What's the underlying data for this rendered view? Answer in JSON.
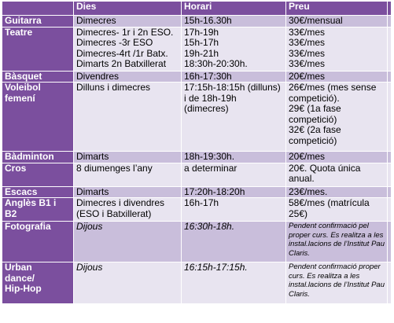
{
  "header": {
    "activity": "",
    "days": "Dies",
    "time": "Horari",
    "price": "Preu"
  },
  "rows": [
    {
      "activity": "Guitarra",
      "days": [
        "Dimecres"
      ],
      "time": [
        "15h-16.30h"
      ],
      "price": [
        "30€/mensual"
      ]
    },
    {
      "activity": "Teatre",
      "days": [
        "Dimecres- 1r i 2n ESO.",
        "Dimecres -3r ESO",
        "Dimecres-4rt /1r Batx.",
        "Dimarts 2n Batxillerat"
      ],
      "time": [
        "17h-19h",
        "15h-17h",
        "19h-21h",
        "18:30h-20:30h."
      ],
      "price": [
        "33€/mes",
        "33€/mes",
        "33€/mes",
        "33€/mes"
      ]
    },
    {
      "activity": "Bàsquet",
      "days": [
        "Divendres"
      ],
      "time": [
        "16h-17:30h"
      ],
      "price": [
        "20€/mes"
      ]
    },
    {
      "activity": "Voleibol femení",
      "days": [
        "Dilluns i dimecres"
      ],
      "time": [
        "17:15h-18:15h (dilluns) i de 18h-19h (dimecres)"
      ],
      "price": [
        "26€/mes (mes sense competició).",
        "29€ (1a fase competició)",
        "32€ (2a fase competició)"
      ]
    },
    {
      "activity": "Bàdminton",
      "days": [
        "Dimarts"
      ],
      "time": [
        "18h-19:30h."
      ],
      "price": [
        "20€/mes"
      ]
    },
    {
      "activity": "Cros",
      "days": [
        "8 diumenges l’any"
      ],
      "time": [
        "a determinar"
      ],
      "price": [
        "20€. Quota única anual."
      ]
    },
    {
      "activity": "Escacs",
      "days": [
        "Dimarts"
      ],
      "time": [
        "17:20h-18:20h"
      ],
      "price": [
        "23€/mes."
      ]
    },
    {
      "activity": "Anglès B1 i B2",
      "days": [
        "Dimecres i divendres (ESO i Batxillerat)"
      ],
      "time": [
        "16h-17h"
      ],
      "price": [
        "58€/mes (matrícula 25€)"
      ]
    },
    {
      "activity": "Fotografia",
      "days": [
        "Dijous"
      ],
      "time": [
        "16:30h-18h."
      ],
      "price": [
        "Pendent confirmació pel proper curs. Es realitza a les instal.lacions de l’Institut Pau Claris."
      ]
    },
    {
      "activity": "Urban dance/ Hip-Hop",
      "days": [
        "Dijous"
      ],
      "time": [
        "16:15h-17:15h."
      ],
      "price": [
        "Pendent confirmació proper curs. Es realitza a les instal.lacions de l’Institut Pau Claris."
      ]
    }
  ]
}
